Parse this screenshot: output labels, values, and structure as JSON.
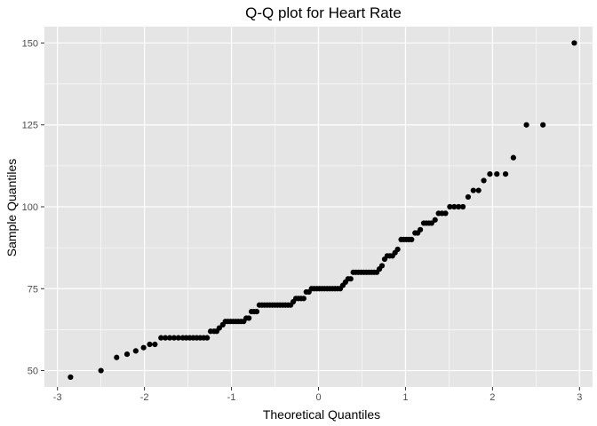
{
  "chart_data": {
    "type": "scatter",
    "title": "Q-Q plot for Heart Rate",
    "xlabel": "Theoretical Quantiles",
    "ylabel": "Sample Quantiles",
    "xlim": [
      -3.15,
      3.15
    ],
    "ylim": [
      45,
      155
    ],
    "x_ticks": [
      -3,
      -2,
      -1,
      0,
      1,
      2,
      3
    ],
    "x_tick_labels": [
      "-3",
      "-2",
      "-1",
      "0",
      "1",
      "2",
      "3"
    ],
    "y_ticks": [
      50,
      75,
      100,
      125,
      150
    ],
    "y_tick_labels": [
      "50",
      "75",
      "100",
      "125",
      "150"
    ],
    "grid": true,
    "point_color": "#000000",
    "panel_background": "#e5e5e5",
    "grid_color": "#ffffff",
    "series": [
      {
        "points": [
          [
            -2.85,
            48
          ],
          [
            -2.5,
            50
          ],
          [
            -2.32,
            54
          ],
          [
            -2.2,
            55
          ],
          [
            -2.1,
            56
          ],
          [
            -2.01,
            57
          ],
          [
            -1.94,
            58
          ],
          [
            -1.88,
            58
          ],
          [
            -1.81,
            60
          ],
          [
            -1.76,
            60
          ],
          [
            -1.71,
            60
          ],
          [
            -1.66,
            60
          ],
          [
            -1.61,
            60
          ],
          [
            -1.56,
            60
          ],
          [
            -1.52,
            60
          ],
          [
            -1.48,
            60
          ],
          [
            -1.44,
            60
          ],
          [
            -1.4,
            60
          ],
          [
            -1.36,
            60
          ],
          [
            -1.32,
            60
          ],
          [
            -1.28,
            60
          ],
          [
            -1.24,
            62
          ],
          [
            -1.2,
            62
          ],
          [
            -1.17,
            62
          ],
          [
            -1.14,
            63
          ],
          [
            -1.1,
            64
          ],
          [
            -1.07,
            65
          ],
          [
            -1.04,
            65
          ],
          [
            -1.01,
            65
          ],
          [
            -0.98,
            65
          ],
          [
            -0.95,
            65
          ],
          [
            -0.92,
            65
          ],
          [
            -0.89,
            65
          ],
          [
            -0.86,
            65
          ],
          [
            -0.83,
            66
          ],
          [
            -0.8,
            66
          ],
          [
            -0.77,
            68
          ],
          [
            -0.74,
            68
          ],
          [
            -0.71,
            68
          ],
          [
            -0.68,
            70
          ],
          [
            -0.65,
            70
          ],
          [
            -0.62,
            70
          ],
          [
            -0.59,
            70
          ],
          [
            -0.56,
            70
          ],
          [
            -0.53,
            70
          ],
          [
            -0.5,
            70
          ],
          [
            -0.47,
            70
          ],
          [
            -0.44,
            70
          ],
          [
            -0.41,
            70
          ],
          [
            -0.38,
            70
          ],
          [
            -0.35,
            70
          ],
          [
            -0.32,
            70
          ],
          [
            -0.29,
            71
          ],
          [
            -0.26,
            72
          ],
          [
            -0.23,
            72
          ],
          [
            -0.2,
            72
          ],
          [
            -0.17,
            72
          ],
          [
            -0.14,
            74
          ],
          [
            -0.11,
            74
          ],
          [
            -0.08,
            75
          ],
          [
            -0.05,
            75
          ],
          [
            -0.02,
            75
          ],
          [
            0.01,
            75
          ],
          [
            0.04,
            75
          ],
          [
            0.07,
            75
          ],
          [
            0.1,
            75
          ],
          [
            0.13,
            75
          ],
          [
            0.16,
            75
          ],
          [
            0.19,
            75
          ],
          [
            0.22,
            75
          ],
          [
            0.25,
            75
          ],
          [
            0.28,
            76
          ],
          [
            0.31,
            77
          ],
          [
            0.34,
            78
          ],
          [
            0.37,
            78
          ],
          [
            0.4,
            80
          ],
          [
            0.43,
            80
          ],
          [
            0.46,
            80
          ],
          [
            0.49,
            80
          ],
          [
            0.52,
            80
          ],
          [
            0.55,
            80
          ],
          [
            0.58,
            80
          ],
          [
            0.61,
            80
          ],
          [
            0.64,
            80
          ],
          [
            0.67,
            80
          ],
          [
            0.7,
            81
          ],
          [
            0.73,
            82
          ],
          [
            0.76,
            84
          ],
          [
            0.79,
            85
          ],
          [
            0.82,
            85
          ],
          [
            0.85,
            85
          ],
          [
            0.88,
            86
          ],
          [
            0.91,
            87
          ],
          [
            0.95,
            90
          ],
          [
            0.98,
            90
          ],
          [
            1.01,
            90
          ],
          [
            1.04,
            90
          ],
          [
            1.07,
            90
          ],
          [
            1.11,
            92
          ],
          [
            1.14,
            92
          ],
          [
            1.17,
            93
          ],
          [
            1.21,
            95
          ],
          [
            1.24,
            95
          ],
          [
            1.27,
            95
          ],
          [
            1.3,
            95
          ],
          [
            1.34,
            96
          ],
          [
            1.38,
            98
          ],
          [
            1.42,
            98
          ],
          [
            1.46,
            98
          ],
          [
            1.51,
            100
          ],
          [
            1.56,
            100
          ],
          [
            1.61,
            100
          ],
          [
            1.66,
            100
          ],
          [
            1.72,
            103
          ],
          [
            1.78,
            105
          ],
          [
            1.84,
            105
          ],
          [
            1.9,
            108
          ],
          [
            1.97,
            110
          ],
          [
            2.05,
            110
          ],
          [
            2.15,
            110
          ],
          [
            2.24,
            115
          ],
          [
            2.39,
            125
          ],
          [
            2.58,
            125
          ],
          [
            2.94,
            150
          ]
        ]
      }
    ]
  }
}
